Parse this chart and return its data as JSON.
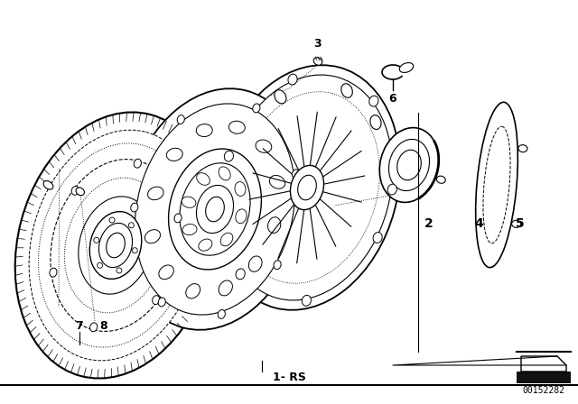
{
  "bg_color": "#ffffff",
  "line_color": "#000000",
  "part_number": "00152282",
  "label_1": "1- RS",
  "label_2": "2",
  "label_3": "3",
  "label_4": "4",
  "label_5": "5",
  "label_6": "6",
  "label_7": "7",
  "label_8": "8",
  "fig_width": 6.4,
  "fig_height": 4.48,
  "dpi": 100
}
